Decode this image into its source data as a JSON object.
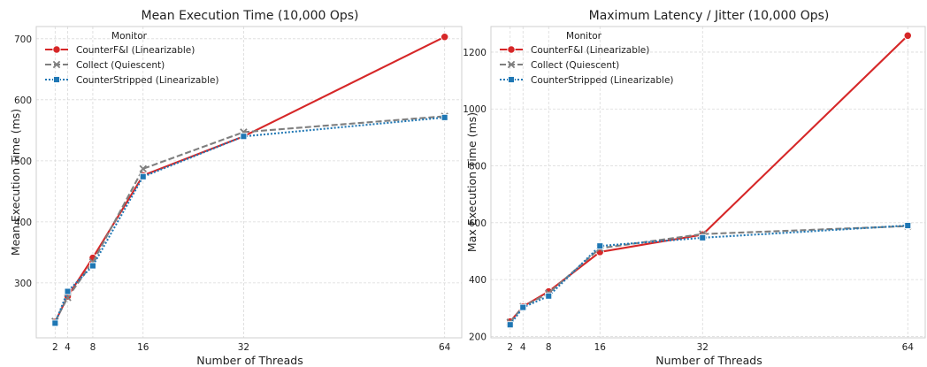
{
  "chart_data": [
    {
      "type": "line",
      "title": "Mean Execution Time (10,000 Ops)",
      "xlabel": "Number of Threads",
      "ylabel": "Mean Execution Time (ms)",
      "x": [
        2,
        4,
        8,
        16,
        32,
        64
      ],
      "xticks": [
        "2",
        "4",
        "8",
        "16",
        "32",
        "64"
      ],
      "yticks": [
        300,
        400,
        500,
        600,
        700
      ],
      "xlim": [
        -1,
        67
      ],
      "ylim": [
        210,
        720
      ],
      "grid": true,
      "legend": {
        "title": "Monitor",
        "placement": "top-left"
      },
      "series": [
        {
          "name": "CounterF&I (Linearizable)",
          "color": "#d62728",
          "dash": "solid",
          "marker": "circle",
          "values": [
            236,
            278,
            341,
            476,
            540,
            703
          ]
        },
        {
          "name": "Collect (Quiescent)",
          "color": "#7f7f7f",
          "dash": "dashed",
          "marker": "x",
          "values": [
            237,
            276,
            334,
            487,
            547,
            573
          ]
        },
        {
          "name": "CounterStripped (Linearizable)",
          "color": "#1f77b4",
          "dash": "dotted",
          "marker": "square",
          "values": [
            234,
            286,
            328,
            474,
            540,
            571
          ]
        }
      ]
    },
    {
      "type": "line",
      "title": "Maximum Latency / Jitter (10,000 Ops)",
      "xlabel": "Number of Threads",
      "ylabel": "Max Execution Time (ms)",
      "x": [
        2,
        4,
        8,
        16,
        32,
        64
      ],
      "xticks": [
        "2",
        "4",
        "8",
        "16",
        "32",
        "64"
      ],
      "yticks": [
        200,
        400,
        600,
        800,
        1000,
        1200
      ],
      "xlim": [
        -1,
        67
      ],
      "ylim": [
        195,
        1290
      ],
      "grid": true,
      "legend": {
        "title": "Monitor",
        "placement": "top-left"
      },
      "series": [
        {
          "name": "CounterF&I (Linearizable)",
          "color": "#d62728",
          "dash": "solid",
          "marker": "circle",
          "values": [
            252,
            305,
            358,
            497,
            558,
            1258
          ]
        },
        {
          "name": "Collect (Quiescent)",
          "color": "#7f7f7f",
          "dash": "dashed",
          "marker": "x",
          "values": [
            250,
            305,
            352,
            510,
            560,
            588
          ]
        },
        {
          "name": "CounterStripped (Linearizable)",
          "color": "#1f77b4",
          "dash": "dotted",
          "marker": "square",
          "values": [
            241,
            302,
            342,
            518,
            547,
            590
          ]
        }
      ]
    }
  ]
}
